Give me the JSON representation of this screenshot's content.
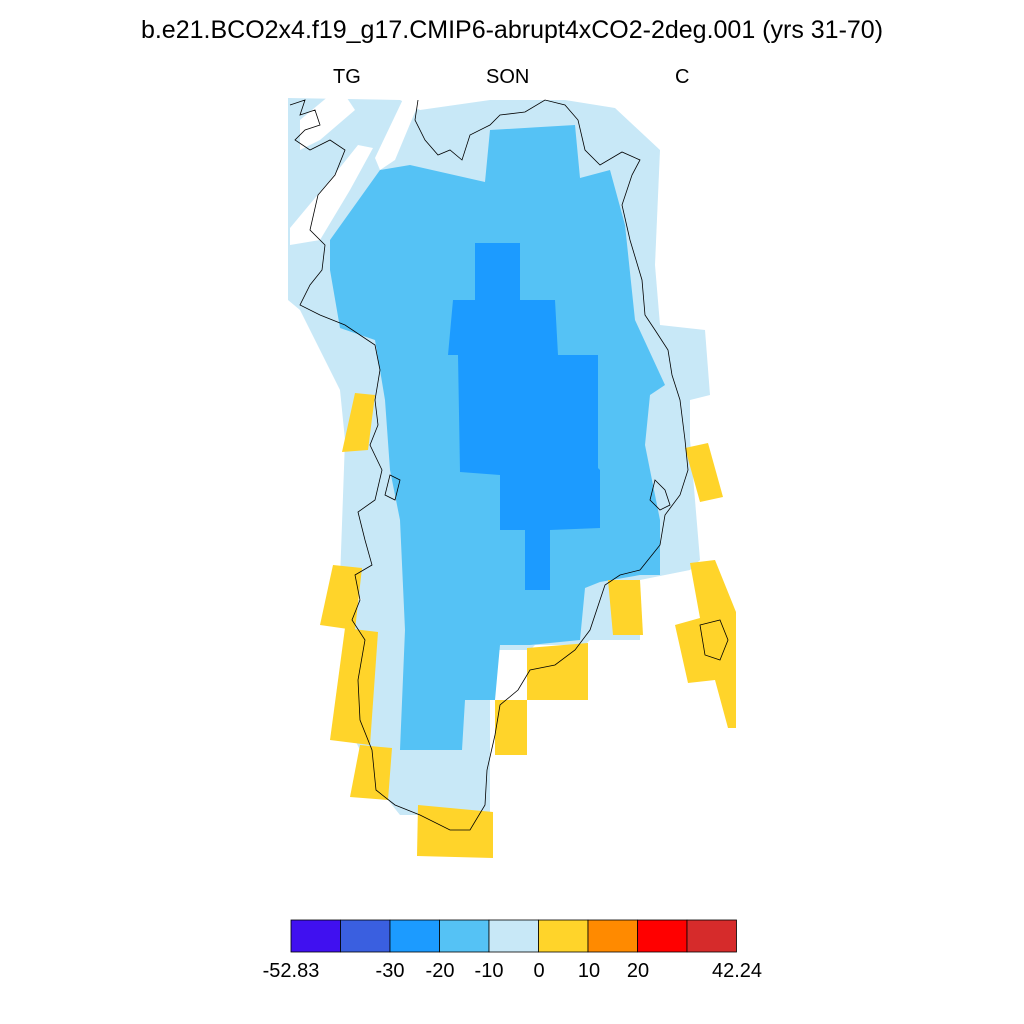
{
  "title": "b.e21.BCO2x4.f19_g17.CMIP6-abrupt4xCO2-2deg.001 (yrs 31-70)",
  "subtitles": {
    "left": "TG",
    "center": "SON",
    "right": "C"
  },
  "colors": {
    "c1": "#4010f0",
    "c2": "#3a5fe0",
    "c3": "#1c9bff",
    "c4": "#55c2f5",
    "c5": "#c8e8f7",
    "c6": "#ffd42a",
    "c7": "#ff8a00",
    "c8": "#ff0000",
    "c9": "#d62b2b",
    "coastline": "#000000"
  },
  "colorbar": {
    "min_label": "-52.83",
    "max_label": "42.24",
    "tick_labels": [
      "-30",
      "-20",
      "-10",
      "0",
      "10",
      "20"
    ],
    "levels": [
      -52.83,
      -40,
      -30,
      -20,
      -10,
      0,
      10,
      20,
      30,
      42.24
    ]
  },
  "map_data": {
    "variable": "TG",
    "season": "SON",
    "units": "C",
    "region": "Greenland"
  }
}
